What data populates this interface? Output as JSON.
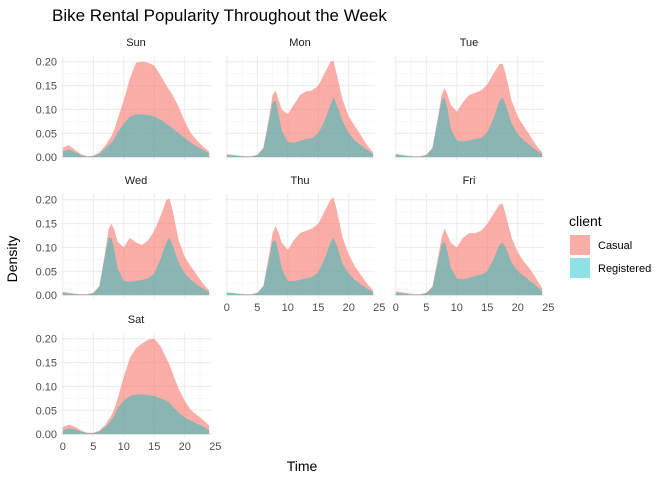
{
  "chart_data": {
    "type": "area",
    "title": "Bike Rental Popularity Throughout the Week",
    "xlabel": "Time",
    "ylabel": "Density",
    "xlim": [
      0,
      24
    ],
    "ylim": [
      0,
      0.21
    ],
    "x_ticks": [
      0,
      5,
      10,
      15,
      20,
      25
    ],
    "y_ticks": [
      0.0,
      0.05,
      0.1,
      0.15,
      0.2
    ],
    "y_tick_labels": [
      "0.00",
      "0.05",
      "0.10",
      "0.15",
      "0.20"
    ],
    "stacked": true,
    "grid": true,
    "legend": {
      "title": "client",
      "position": "right",
      "entries": [
        {
          "name": "Casual",
          "color": "#F8766D"
        },
        {
          "name": "Registered",
          "color": "#00BFC4"
        }
      ]
    },
    "x": [
      0,
      1,
      2,
      3,
      4,
      5,
      6,
      7,
      7.5,
      8,
      8.5,
      9,
      10,
      11,
      12,
      13,
      14,
      15,
      16,
      17,
      17.5,
      18,
      19,
      20,
      21,
      22,
      23,
      24
    ],
    "panels": [
      {
        "name": "Sun",
        "total": [
          0.02,
          0.025,
          0.015,
          0.006,
          0.002,
          0.003,
          0.01,
          0.025,
          0.035,
          0.045,
          0.06,
          0.08,
          0.12,
          0.165,
          0.198,
          0.2,
          0.198,
          0.192,
          0.172,
          0.15,
          0.14,
          0.13,
          0.105,
          0.075,
          0.05,
          0.035,
          0.022,
          0.012
        ],
        "registered": [
          0.012,
          0.016,
          0.01,
          0.004,
          0.001,
          0.002,
          0.007,
          0.018,
          0.025,
          0.03,
          0.04,
          0.052,
          0.07,
          0.085,
          0.09,
          0.09,
          0.088,
          0.085,
          0.078,
          0.07,
          0.065,
          0.06,
          0.05,
          0.04,
          0.03,
          0.022,
          0.015,
          0.008
        ]
      },
      {
        "name": "Mon",
        "total": [
          0.006,
          0.005,
          0.003,
          0.002,
          0.002,
          0.005,
          0.02,
          0.09,
          0.13,
          0.14,
          0.12,
          0.1,
          0.09,
          0.11,
          0.13,
          0.138,
          0.14,
          0.15,
          0.175,
          0.2,
          0.202,
          0.175,
          0.12,
          0.085,
          0.065,
          0.045,
          0.025,
          0.01
        ],
        "registered": [
          0.004,
          0.003,
          0.002,
          0.001,
          0.001,
          0.004,
          0.018,
          0.08,
          0.115,
          0.118,
          0.09,
          0.055,
          0.032,
          0.03,
          0.034,
          0.038,
          0.04,
          0.05,
          0.075,
          0.11,
          0.125,
          0.11,
          0.075,
          0.05,
          0.035,
          0.025,
          0.015,
          0.006
        ]
      },
      {
        "name": "Tue",
        "total": [
          0.007,
          0.005,
          0.003,
          0.002,
          0.002,
          0.005,
          0.02,
          0.09,
          0.13,
          0.145,
          0.13,
          0.11,
          0.095,
          0.115,
          0.13,
          0.135,
          0.14,
          0.152,
          0.175,
          0.195,
          0.196,
          0.175,
          0.118,
          0.085,
          0.065,
          0.045,
          0.025,
          0.01
        ],
        "registered": [
          0.005,
          0.003,
          0.002,
          0.001,
          0.001,
          0.004,
          0.018,
          0.085,
          0.12,
          0.125,
          0.1,
          0.06,
          0.035,
          0.033,
          0.035,
          0.038,
          0.04,
          0.052,
          0.08,
          0.118,
          0.125,
          0.11,
          0.07,
          0.048,
          0.035,
          0.025,
          0.015,
          0.006
        ]
      },
      {
        "name": "Wed",
        "total": [
          0.007,
          0.005,
          0.003,
          0.002,
          0.002,
          0.005,
          0.02,
          0.095,
          0.138,
          0.15,
          0.135,
          0.112,
          0.1,
          0.12,
          0.11,
          0.105,
          0.115,
          0.135,
          0.165,
          0.2,
          0.202,
          0.178,
          0.115,
          0.08,
          0.06,
          0.042,
          0.024,
          0.01
        ],
        "registered": [
          0.005,
          0.003,
          0.002,
          0.001,
          0.001,
          0.004,
          0.018,
          0.088,
          0.12,
          0.12,
          0.09,
          0.055,
          0.03,
          0.028,
          0.03,
          0.032,
          0.035,
          0.045,
          0.075,
          0.112,
          0.12,
          0.105,
          0.068,
          0.045,
          0.032,
          0.022,
          0.014,
          0.006
        ]
      },
      {
        "name": "Thu",
        "total": [
          0.006,
          0.005,
          0.003,
          0.002,
          0.002,
          0.005,
          0.02,
          0.09,
          0.13,
          0.145,
          0.13,
          0.11,
          0.095,
          0.115,
          0.13,
          0.135,
          0.14,
          0.15,
          0.175,
          0.2,
          0.205,
          0.18,
          0.12,
          0.085,
          0.06,
          0.042,
          0.024,
          0.01
        ],
        "registered": [
          0.004,
          0.003,
          0.002,
          0.001,
          0.001,
          0.004,
          0.018,
          0.08,
          0.112,
          0.115,
          0.09,
          0.055,
          0.03,
          0.03,
          0.032,
          0.035,
          0.038,
          0.048,
          0.075,
          0.11,
          0.12,
          0.105,
          0.065,
          0.045,
          0.032,
          0.022,
          0.014,
          0.006
        ]
      },
      {
        "name": "Fri",
        "total": [
          0.008,
          0.006,
          0.004,
          0.002,
          0.002,
          0.005,
          0.018,
          0.085,
          0.12,
          0.14,
          0.125,
          0.11,
          0.1,
          0.12,
          0.13,
          0.13,
          0.135,
          0.15,
          0.17,
          0.19,
          0.192,
          0.17,
          0.12,
          0.09,
          0.07,
          0.055,
          0.035,
          0.015
        ],
        "registered": [
          0.005,
          0.004,
          0.002,
          0.001,
          0.001,
          0.004,
          0.016,
          0.075,
          0.105,
          0.112,
          0.09,
          0.058,
          0.035,
          0.033,
          0.036,
          0.04,
          0.043,
          0.05,
          0.075,
          0.105,
          0.11,
          0.1,
          0.068,
          0.05,
          0.04,
          0.03,
          0.02,
          0.008
        ]
      },
      {
        "name": "Sat",
        "total": [
          0.015,
          0.02,
          0.015,
          0.008,
          0.003,
          0.003,
          0.008,
          0.02,
          0.03,
          0.04,
          0.055,
          0.075,
          0.12,
          0.16,
          0.18,
          0.19,
          0.198,
          0.2,
          0.185,
          0.158,
          0.145,
          0.128,
          0.095,
          0.07,
          0.05,
          0.04,
          0.03,
          0.018
        ],
        "registered": [
          0.008,
          0.012,
          0.01,
          0.005,
          0.002,
          0.002,
          0.005,
          0.015,
          0.022,
          0.03,
          0.04,
          0.055,
          0.07,
          0.08,
          0.083,
          0.083,
          0.082,
          0.08,
          0.075,
          0.07,
          0.065,
          0.058,
          0.045,
          0.035,
          0.028,
          0.022,
          0.016,
          0.008
        ]
      }
    ]
  }
}
